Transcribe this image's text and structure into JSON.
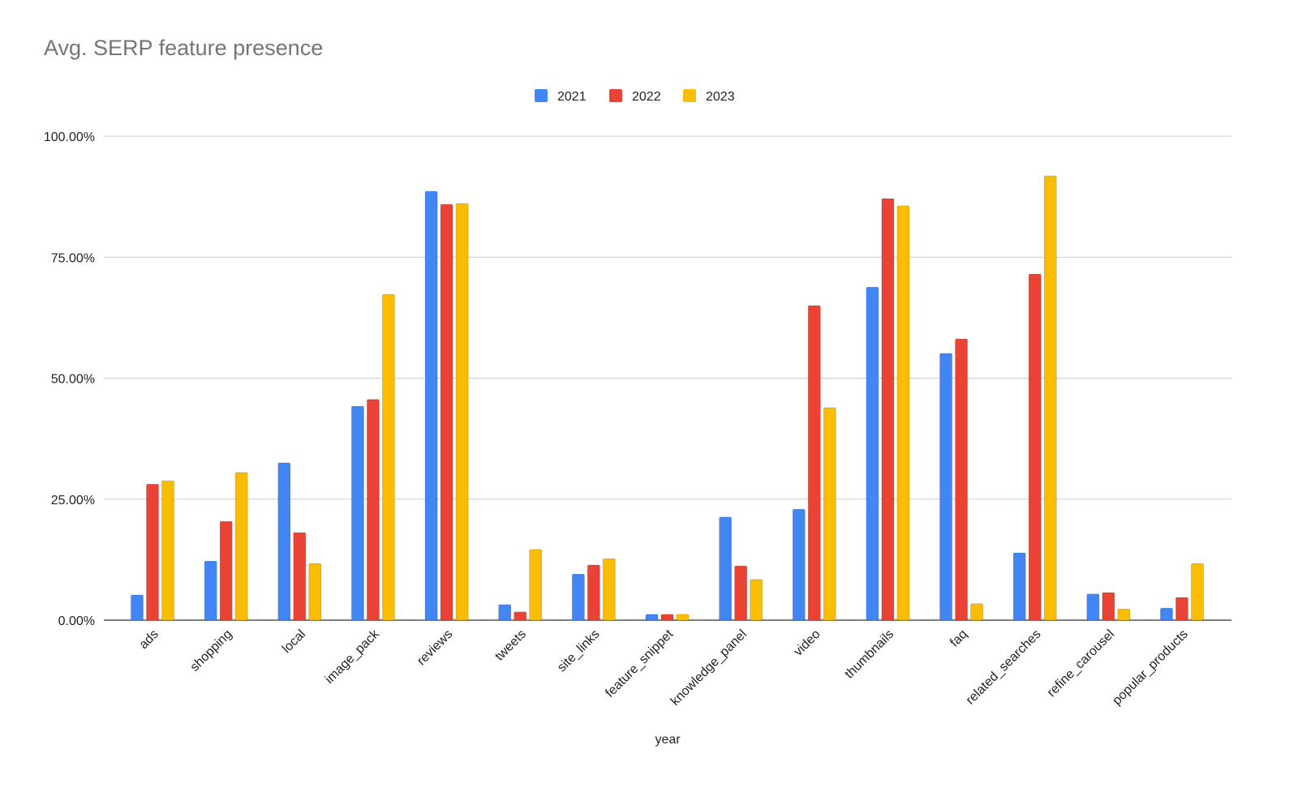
{
  "chart_data": {
    "type": "bar",
    "title": "Avg. SERP feature presence",
    "xlabel": "year",
    "ylabel": "",
    "ylim": [
      0,
      100
    ],
    "y_ticks": [
      "0.00%",
      "25.00%",
      "50.00%",
      "75.00%",
      "100.00%"
    ],
    "y_tick_values": [
      0,
      25,
      50,
      75,
      100
    ],
    "grid": true,
    "legend_position": "top",
    "categories": [
      "ads",
      "shopping",
      "local",
      "image_pack",
      "reviews",
      "tweets",
      "site_links",
      "feature_snippet",
      "knowledge_panel",
      "video",
      "thumbnails",
      "faq",
      "related_searches",
      "refine_carousel",
      "popular_products"
    ],
    "series": [
      {
        "name": "2021",
        "color": "#4285f4",
        "values": [
          5.2,
          12.2,
          32.5,
          44.2,
          88.6,
          3.2,
          9.5,
          1.2,
          21.3,
          22.9,
          68.8,
          55.1,
          13.9,
          5.4,
          2.5
        ]
      },
      {
        "name": "2022",
        "color": "#ea4335",
        "values": [
          28.1,
          20.4,
          18.1,
          45.6,
          85.9,
          1.7,
          11.4,
          1.2,
          11.2,
          65.0,
          87.1,
          58.1,
          71.5,
          5.7,
          4.7
        ]
      },
      {
        "name": "2023",
        "color": "#fbbc04",
        "values": [
          28.8,
          30.5,
          11.7,
          67.3,
          86.1,
          14.6,
          12.7,
          1.2,
          8.4,
          43.9,
          85.6,
          3.4,
          91.8,
          2.3,
          11.7
        ]
      }
    ]
  }
}
